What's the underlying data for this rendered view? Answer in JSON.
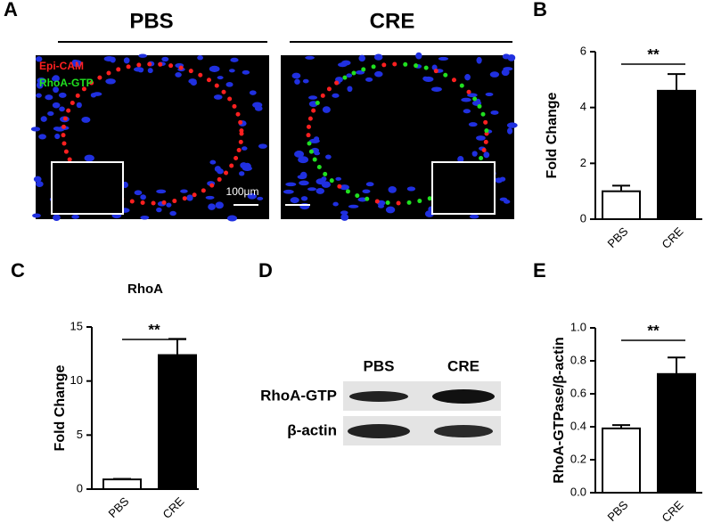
{
  "panel_a": {
    "letter": "A",
    "groups": [
      "PBS",
      "CRE"
    ],
    "stains": [
      {
        "name": "Epi-CAM",
        "color": "#ff2020"
      },
      {
        "name": "RhoA-GTP",
        "color": "#20e020"
      }
    ],
    "scale": "100μm"
  },
  "panel_d": {
    "letter": "D",
    "columns": [
      "PBS",
      "CRE"
    ],
    "rows": [
      "RhoA-GTP",
      "β-actin"
    ]
  },
  "chart_data": [
    {
      "type": "bar",
      "panel": "B",
      "categories": [
        "PBS",
        "CRE"
      ],
      "values": [
        1.0,
        4.6
      ],
      "errors": [
        0.2,
        0.6
      ],
      "colors": [
        "#ffffff",
        "#000000"
      ],
      "ylabel": "Fold Change",
      "ylim": [
        0,
        6
      ],
      "yticks": [
        0,
        2,
        4,
        6
      ],
      "annotation": "**"
    },
    {
      "type": "bar",
      "panel": "C",
      "title": "RhoA",
      "categories": [
        "PBS",
        "CRE"
      ],
      "values": [
        0.9,
        12.4
      ],
      "errors": [
        0.05,
        1.5
      ],
      "colors": [
        "#ffffff",
        "#000000"
      ],
      "ylabel": "Fold Change",
      "ylim": [
        0,
        15
      ],
      "yticks": [
        0,
        5,
        10,
        15
      ],
      "annotation": "**"
    },
    {
      "type": "bar",
      "panel": "E",
      "categories": [
        "PBS",
        "CRE"
      ],
      "values": [
        0.39,
        0.72
      ],
      "errors": [
        0.02,
        0.1
      ],
      "colors": [
        "#ffffff",
        "#000000"
      ],
      "ylabel": "RhoA-GTPase/β-actin",
      "ylim": [
        0,
        1.0
      ],
      "yticks": [
        {
          "value": 0,
          "label": "0.0"
        },
        0.2,
        0.4,
        0.6,
        0.8,
        {
          "value": 1.0,
          "label": "1.0"
        }
      ],
      "annotation": "**"
    }
  ]
}
